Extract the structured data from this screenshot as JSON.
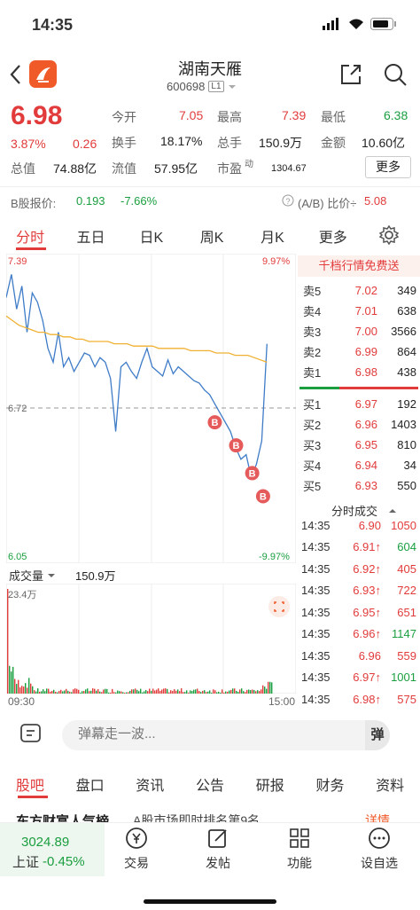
{
  "status": {
    "time": "14:35"
  },
  "header": {
    "title": "湖南天雁",
    "code": "600698",
    "level": "L1"
  },
  "quote": {
    "price": "6.98",
    "change_pct": "3.87%",
    "change": "0.26",
    "open_label": "今开",
    "open": "7.05",
    "high_label": "最高",
    "high": "7.39",
    "low_label": "最低",
    "low": "6.38",
    "turnover_label": "换手",
    "turnover": "18.17%",
    "volume_label": "总手",
    "volume": "150.9万",
    "amount_label": "金额",
    "amount": "10.60亿",
    "mcap_label": "总值",
    "mcap": "74.88亿",
    "float_label": "流值",
    "float": "57.95亿",
    "pe_label": "市盈",
    "pe_sup": "动",
    "pe": "1304.67",
    "more_label": "更多"
  },
  "bshare": {
    "label": "B股报价:",
    "price": "0.193",
    "pct": "-7.66%",
    "ratio_label": "(A/B) 比价÷",
    "ratio": "5.08"
  },
  "tabs": [
    "分时",
    "五日",
    "日K",
    "周K",
    "月K",
    "更多"
  ],
  "chart": {
    "price_top": "7.39",
    "pct_top": "9.97%",
    "mid": "6.72",
    "price_bottom": "6.05",
    "pct_bottom": "-9.97%",
    "volume_label": "成交量",
    "volume_value": "150.9万",
    "vol_max": "23.4万",
    "time_start": "09:30",
    "time_end": "15:00"
  },
  "chart_data": {
    "type": "line",
    "title": "",
    "ylim": [
      6.05,
      7.39
    ],
    "series": [
      {
        "name": "",
        "values": [
          7.2,
          7.3,
          7.15,
          7.25,
          7.05,
          7.22,
          7.18,
          7.1,
          6.98,
          6.92,
          7.05,
          6.9,
          6.94,
          6.88,
          6.92,
          6.96,
          6.95,
          6.9,
          6.94,
          6.92,
          6.85,
          6.62,
          6.9,
          6.92,
          6.88,
          6.85,
          6.92,
          6.98,
          6.9,
          6.88,
          6.86,
          6.93,
          6.87,
          6.9,
          6.88,
          6.86,
          6.84,
          6.83,
          6.8,
          6.78,
          6.74,
          6.7,
          6.66,
          6.62,
          6.55,
          6.5,
          6.52,
          6.42,
          6.48,
          6.58,
          7.0
        ]
      },
      {
        "name": "",
        "values": [
          7.12,
          7.1,
          7.08,
          7.07,
          7.06,
          7.05,
          7.05,
          7.04,
          7.04,
          7.03,
          7.03,
          7.02,
          7.02,
          7.01,
          7.01,
          7.01,
          7.01,
          7.0,
          7.0,
          7.0,
          6.99,
          6.99,
          6.99,
          6.99,
          6.98,
          6.98,
          6.98,
          6.98,
          6.98,
          6.97,
          6.97,
          6.97,
          6.97,
          6.96,
          6.96,
          6.96,
          6.95,
          6.95,
          6.95,
          6.94,
          6.93,
          6.92
        ]
      }
    ]
  },
  "orderbook": {
    "promo": "千档行情免费送",
    "sells": [
      {
        "l": "卖5",
        "p": "7.02",
        "v": "349"
      },
      {
        "l": "卖4",
        "p": "7.01",
        "v": "638"
      },
      {
        "l": "卖3",
        "p": "7.00",
        "v": "3566"
      },
      {
        "l": "卖2",
        "p": "6.99",
        "v": "864"
      },
      {
        "l": "卖1",
        "p": "6.98",
        "v": "438"
      }
    ],
    "buys": [
      {
        "l": "买1",
        "p": "6.97",
        "v": "192"
      },
      {
        "l": "买2",
        "p": "6.96",
        "v": "1403"
      },
      {
        "l": "买3",
        "p": "6.95",
        "v": "810"
      },
      {
        "l": "买4",
        "p": "6.94",
        "v": "34"
      },
      {
        "l": "买5",
        "p": "6.93",
        "v": "550"
      }
    ],
    "ticks_title": "分时成交",
    "ticks": [
      {
        "t": "14:35",
        "p": "6.90",
        "v": "1050"
      },
      {
        "t": "14:35",
        "p": "6.91↑",
        "v": "604"
      },
      {
        "t": "14:35",
        "p": "6.92↑",
        "v": "405"
      },
      {
        "t": "14:35",
        "p": "6.93↑",
        "v": "722"
      },
      {
        "t": "14:35",
        "p": "6.95↑",
        "v": "651"
      },
      {
        "t": "14:35",
        "p": "6.96↑",
        "v": "1147"
      },
      {
        "t": "14:35",
        "p": "6.96",
        "v": "559"
      },
      {
        "t": "14:35",
        "p": "6.97↑",
        "v": "1001"
      },
      {
        "t": "14:35",
        "p": "6.98↑",
        "v": "575"
      }
    ]
  },
  "danmaku": {
    "placeholder": "弹幕走一波...",
    "btn": "弹"
  },
  "subtabs": [
    "股吧",
    "盘口",
    "资讯",
    "公告",
    "研报",
    "财务",
    "资料"
  ],
  "news": {
    "text": "东方财富人气榜",
    "tail": "A股市场即时排名第9名",
    "more": "详情"
  },
  "bottom": {
    "index_value": "3024.89",
    "index_name": "上证",
    "index_pct": "-0.45%",
    "nav": [
      "交易",
      "发帖",
      "功能",
      "设自选"
    ]
  },
  "colors": {
    "up": "#e23b3b",
    "down": "#1a9e3f",
    "avg": "#f0b132",
    "price_line": "#3f7cc8"
  }
}
